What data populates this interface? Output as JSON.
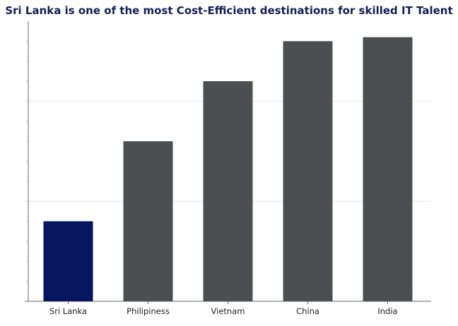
{
  "chart_data": {
    "type": "bar",
    "title": "Sri Lanka is one of the most Cost-Efficient destinations for skilled IT Talent",
    "xlabel": "",
    "ylabel": "",
    "categories": [
      "Sri Lanka",
      "Philipiness",
      "Vietnam",
      "China",
      "India"
    ],
    "values": [
      40,
      80,
      110,
      130,
      132
    ],
    "ylim": [
      0,
      140
    ],
    "grid": true,
    "legend": "none",
    "colors": {
      "highlight": "#051560",
      "default": "#4b4f52",
      "gridline": "#e6e6e6",
      "axis": "#666666",
      "title": "#131f53"
    },
    "highlight_category": "Sri Lanka"
  }
}
